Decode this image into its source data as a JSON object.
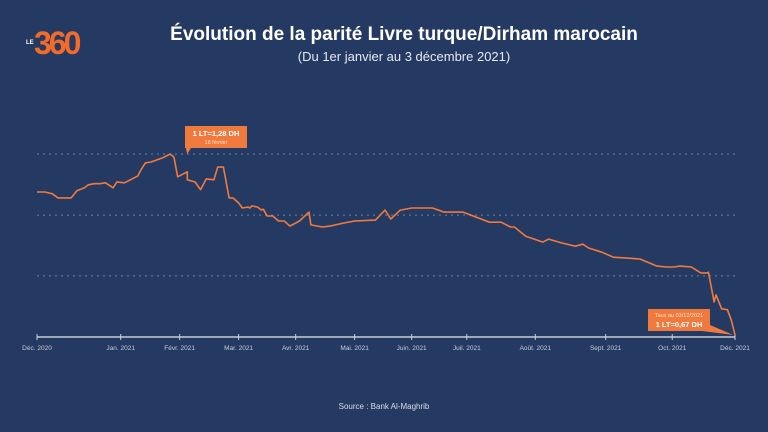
{
  "brand": {
    "logo_prefix": "LE",
    "logo_text": "360"
  },
  "colors": {
    "background": "#253a63",
    "line": "#f07a3e",
    "callout": "#f07a3e",
    "grid": "#6d7ea0",
    "axis": "#c9ced8",
    "logo_orange": "#f26b2a"
  },
  "chart_data": {
    "type": "line",
    "title": "Évolution de la parité Livre turque/Dirham marocain",
    "subtitle": "(Du 1er janvier au 3 décembre 2021)",
    "xlabel": "",
    "ylabel": "",
    "x_unit": "days since 1 Dec 2020",
    "xlim": [
      0,
      367
    ],
    "ylim": [
      0.663,
      1.28
    ],
    "grid": true,
    "gridlines": [
      1.28,
      1.074,
      0.869
    ],
    "x_ticks": [
      {
        "label": "Déc. 2020",
        "day": 0
      },
      {
        "label": "Jan. 2021",
        "day": 44
      },
      {
        "label": "Févr. 2021",
        "day": 75
      },
      {
        "label": "Mar. 2021",
        "day": 106
      },
      {
        "label": "Avr. 2021",
        "day": 136
      },
      {
        "label": "Mai. 2021",
        "day": 167
      },
      {
        "label": "Juin. 2021",
        "day": 197
      },
      {
        "label": "Juil. 2021",
        "day": 226
      },
      {
        "label": "Août. 2021",
        "day": 262
      },
      {
        "label": "Sept. 2021",
        "day": 299
      },
      {
        "label": "Oct. 2021",
        "day": 334
      },
      {
        "label": "Déc. 2021",
        "day": 367
      }
    ],
    "series": [
      {
        "name": "Livre turque/Dirham marocain",
        "x": [
          0,
          4,
          8,
          11,
          14,
          18,
          21,
          25,
          27,
          30,
          33,
          36,
          40,
          42,
          46,
          50,
          53,
          55,
          57,
          60,
          66,
          70,
          72,
          74,
          79,
          79,
          83,
          86,
          89,
          93,
          95,
          98,
          101,
          103,
          106,
          108,
          111,
          112,
          113,
          116,
          118,
          119,
          121,
          124,
          127,
          130,
          133,
          138,
          143,
          144,
          150,
          154,
          161,
          167,
          178,
          180,
          183,
          186,
          191,
          197,
          200,
          208,
          214,
          224,
          238,
          244,
          249,
          251,
          257,
          266,
          269,
          276,
          283,
          287,
          290,
          297,
          303,
          317,
          326,
          331,
          335,
          338,
          344,
          349,
          353,
          353,
          356,
          357,
          360,
          363,
          365,
          367
        ],
        "y": [
          1.152,
          1.152,
          1.146,
          1.132,
          1.132,
          1.132,
          1.156,
          1.166,
          1.176,
          1.18,
          1.18,
          1.183,
          1.166,
          1.186,
          1.183,
          1.196,
          1.206,
          1.23,
          1.25,
          1.253,
          1.267,
          1.28,
          1.27,
          1.203,
          1.22,
          1.193,
          1.186,
          1.16,
          1.196,
          1.193,
          1.236,
          1.236,
          1.132,
          1.132,
          1.115,
          1.098,
          1.101,
          1.098,
          1.105,
          1.101,
          1.091,
          1.094,
          1.071,
          1.071,
          1.054,
          1.054,
          1.037,
          1.054,
          1.084,
          1.041,
          1.034,
          1.037,
          1.047,
          1.054,
          1.057,
          1.071,
          1.091,
          1.061,
          1.091,
          1.098,
          1.098,
          1.098,
          1.084,
          1.084,
          1.05,
          1.05,
          1.034,
          1.034,
          1.003,
          0.983,
          0.993,
          0.98,
          0.969,
          0.976,
          0.963,
          0.949,
          0.932,
          0.926,
          0.902,
          0.899,
          0.899,
          0.902,
          0.899,
          0.879,
          0.879,
          0.882,
          0.781,
          0.805,
          0.758,
          0.755,
          0.721,
          0.67
        ]
      }
    ],
    "annotations": [
      {
        "label": "1 LT=1,28 DH",
        "sublabel": "18 février",
        "day": 79,
        "value": 1.28
      },
      {
        "label": "1 LT=0,67 DH",
        "sublabel": "Taux au 03/12/2021",
        "day": 367,
        "value": 0.67
      }
    ]
  },
  "footer": {
    "source": "Source : Bank Al-Maghrib"
  }
}
